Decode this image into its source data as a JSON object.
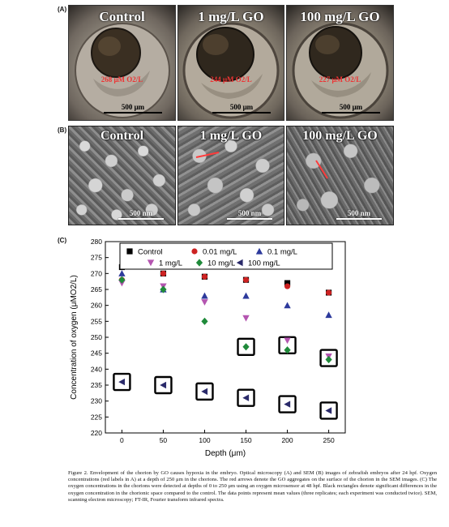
{
  "panels": {
    "a_label": "(A)",
    "b_label": "(B)",
    "c_label": "(C)"
  },
  "optical": [
    {
      "title": "Control",
      "oxygen": "268 μM O2/L",
      "scale": "500 μm"
    },
    {
      "title": "1 mg/L GO",
      "oxygen": "244 μM O2/L",
      "scale": "500 μm"
    },
    {
      "title": "100 mg/L GO",
      "oxygen": "227 μM O2/L",
      "scale": "500 μm"
    }
  ],
  "sem": [
    {
      "title": "Control",
      "scale": "500 nm"
    },
    {
      "title": "1 mg/L GO",
      "scale": "500 nm"
    },
    {
      "title": "100 mg/L GO",
      "scale": "500 nm"
    }
  ],
  "chart_data": {
    "type": "scatter",
    "xlabel": "Depth (μm)",
    "ylabel": "Concentration of oxygen (μMO2/L)",
    "x": [
      0,
      50,
      100,
      150,
      200,
      250
    ],
    "xlim": [
      -20,
      270
    ],
    "ylim": [
      220,
      280
    ],
    "xticks": [
      "0",
      "50",
      "100",
      "150",
      "200",
      "250"
    ],
    "yticks": [
      "220",
      "225",
      "230",
      "235",
      "240",
      "245",
      "250",
      "255",
      "260",
      "265",
      "270",
      "275",
      "280"
    ],
    "legend_position": "top",
    "series": [
      {
        "name": "Control",
        "marker": "square",
        "color": "#000000",
        "values": [
          272,
          270,
          269,
          268,
          267,
          264
        ]
      },
      {
        "name": "0.01 mg/L",
        "marker": "circle",
        "color": "#cc2222",
        "values": [
          268,
          270,
          269,
          268,
          266,
          264
        ]
      },
      {
        "name": "0.1 mg/L",
        "marker": "triangle-up",
        "color": "#2d3a9c",
        "values": [
          270,
          265,
          263,
          263,
          260,
          257
        ]
      },
      {
        "name": "1 mg/L",
        "marker": "triangle-down",
        "color": "#b455b0",
        "values": [
          267,
          266,
          261,
          256,
          249,
          244
        ]
      },
      {
        "name": "10 mg/L",
        "marker": "diamond",
        "color": "#1f8a3a",
        "values": [
          268,
          265,
          255,
          247,
          246,
          243
        ]
      },
      {
        "name": "100 mg/L",
        "marker": "triangle-left",
        "color": "#2a2a6a",
        "values": [
          236,
          235,
          233,
          231,
          229,
          227
        ]
      }
    ],
    "boxes": [
      {
        "x": 0,
        "y": 236
      },
      {
        "x": 50,
        "y": 235
      },
      {
        "x": 100,
        "y": 233
      },
      {
        "x": 150,
        "y": 231
      },
      {
        "x": 200,
        "y": 229
      },
      {
        "x": 250,
        "y": 227
      },
      {
        "x": 150,
        "y": 247
      },
      {
        "x": 200,
        "y": 247.5
      },
      {
        "x": 250,
        "y": 243.5
      }
    ]
  },
  "caption": "Figure 2. Envelopment of the chorion by GO causes hypoxia in the embryo. Optical microscopy (A) and SEM (B) images of zebrafish embryos after 24 hpf. Oxygen concentrations (red labels in A) at a depth of 250 μm in the chorions. The red arrows denote the GO aggregates on the surface of the chorion in the SEM images. (C) The oxygen concentrations in the chorions were detected at depths of 0 to 250 μm using an oxygen microsensor at 48 hpf. Black rectangles denote significant differences in the oxygen concentration in the chorionic space compared to the control. The data points represent mean values (three replicates; each experiment was conducted twice). SEM, scanning electron microscopy; FT-IR, Fourier transform infrared spectra."
}
